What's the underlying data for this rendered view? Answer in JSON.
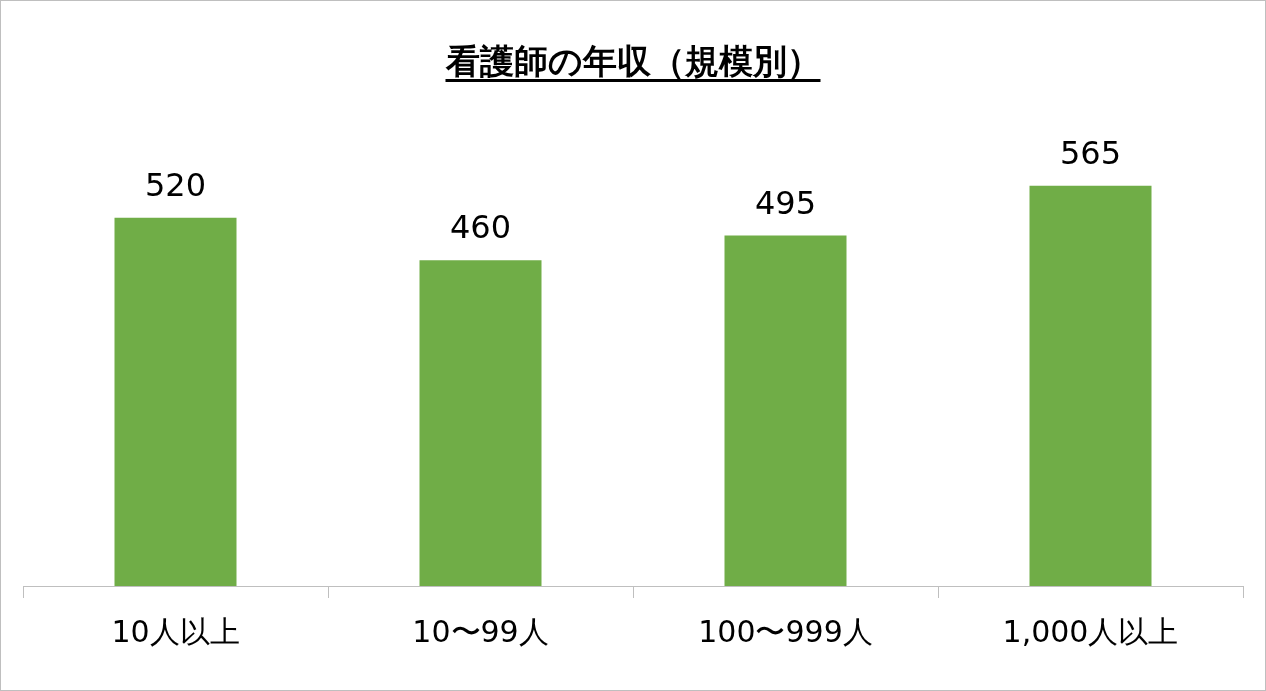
{
  "chart_data": {
    "type": "bar",
    "title": "看護師の年収（規模別）",
    "categories": [
      "10人以上",
      "10〜99人",
      "100〜999人",
      "1,000人以上"
    ],
    "values": [
      520,
      460,
      495,
      565
    ],
    "color": "#70ad47",
    "tick_labels": "x",
    "data_labels": true,
    "grid": false,
    "legend": false
  }
}
